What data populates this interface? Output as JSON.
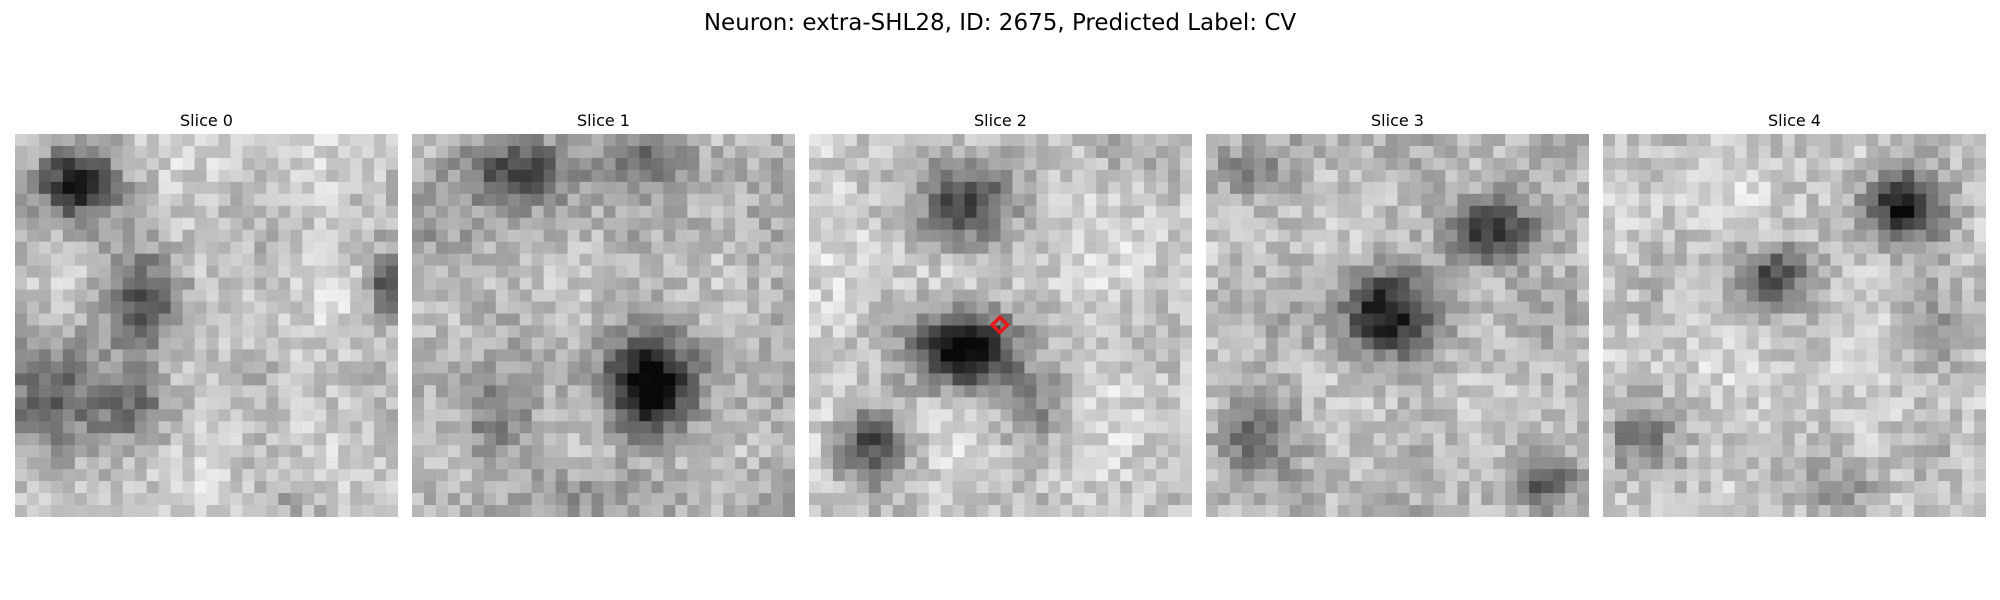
{
  "figure": {
    "title": "Neuron: extra-SHL28, ID: 2675, Predicted Label: CV",
    "marker_color": "#e31a1c",
    "colormap": "gray"
  },
  "slices": [
    {
      "label": "Slice 0"
    },
    {
      "label": "Slice 1"
    },
    {
      "label": "Slice 2",
      "has_marker": true
    },
    {
      "label": "Slice 3"
    },
    {
      "label": "Slice 4"
    }
  ]
}
